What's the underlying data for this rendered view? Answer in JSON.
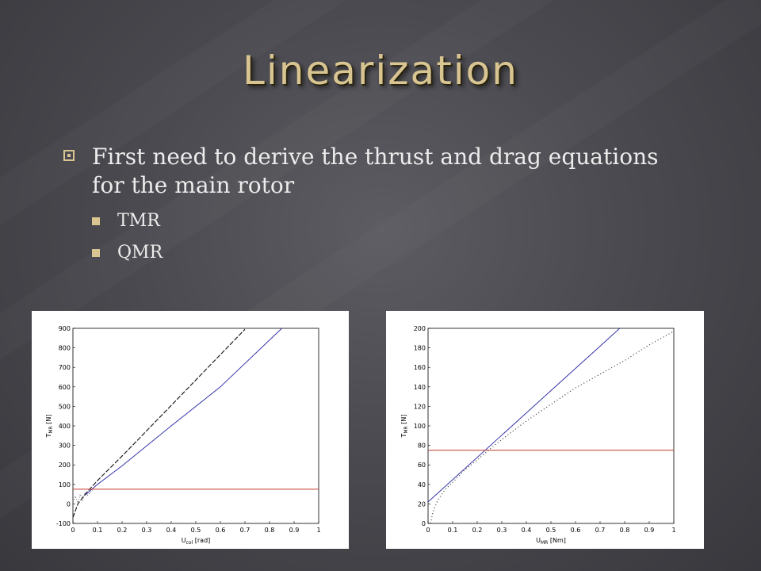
{
  "slide": {
    "title": "Linearization",
    "bullets": [
      {
        "text": "First need to derive the thrust and drag equations for the main rotor",
        "children": [
          "TMR",
          "QMR"
        ]
      }
    ]
  },
  "colors": {
    "title": "#d8c591",
    "linear_fit": "#3333aa",
    "operating_point": "#c0392b",
    "curve": "#222222"
  },
  "chart_data": [
    {
      "type": "line",
      "title": "",
      "xlabel": "U_col [rad]",
      "ylabel": "T_MR [N]",
      "xlim": [
        0,
        1
      ],
      "ylim": [
        -100,
        900
      ],
      "xticks": [
        "0",
        "0.1",
        "0.2",
        "0.3",
        "0.4",
        "0.5",
        "0.6",
        "0.7",
        "0.8",
        "0.9",
        "1"
      ],
      "yticks": [
        "-100",
        "0",
        "100",
        "200",
        "300",
        "400",
        "500",
        "600",
        "700",
        "800",
        "900"
      ],
      "series": [
        {
          "style": "dashed-black",
          "x": [
            0,
            0.02,
            0.05,
            0.1,
            0.2,
            0.3,
            0.4,
            0.5,
            0.6,
            0.7
          ],
          "y": [
            -70,
            0,
            50,
            120,
            245,
            375,
            505,
            635,
            765,
            895
          ]
        },
        {
          "style": "solid-blue",
          "x": [
            0.05,
            0.1,
            0.2,
            0.4,
            0.6,
            0.85
          ],
          "y": [
            45,
            100,
            195,
            400,
            600,
            900
          ]
        },
        {
          "style": "solid-red",
          "x": [
            0,
            1
          ],
          "y": [
            75,
            75
          ]
        },
        {
          "style": "dotted-gray",
          "x": [
            0,
            0.01,
            0.02,
            0.03,
            0.04,
            0.05,
            0.06,
            0.08
          ],
          "y": [
            10,
            40,
            5,
            50,
            20,
            60,
            45,
            70
          ]
        }
      ]
    },
    {
      "type": "line",
      "title": "",
      "xlabel": "U_MR [Nm]",
      "ylabel": "T_MR [N]",
      "xlim": [
        0,
        1
      ],
      "ylim": [
        0,
        200
      ],
      "xticks": [
        "0",
        "0.1",
        "0.2",
        "0.3",
        "0.4",
        "0.5",
        "0.6",
        "0.7",
        "0.8",
        "0.9",
        "1"
      ],
      "yticks": [
        "0",
        "20",
        "40",
        "60",
        "80",
        "100",
        "120",
        "140",
        "160",
        "180",
        "200"
      ],
      "series": [
        {
          "style": "solid-blue",
          "x": [
            0,
            0.78
          ],
          "y": [
            22,
            200
          ]
        },
        {
          "style": "solid-red",
          "x": [
            0,
            1
          ],
          "y": [
            75,
            75
          ]
        },
        {
          "style": "dotted-black",
          "x": [
            0.01,
            0.02,
            0.04,
            0.07,
            0.1,
            0.15,
            0.2,
            0.25,
            0.3,
            0.4,
            0.5,
            0.6,
            0.7,
            0.8,
            0.9,
            1.0
          ],
          "y": [
            0,
            12,
            24,
            35,
            42,
            55,
            65,
            76,
            86,
            105,
            122,
            139,
            153,
            167,
            183,
            197
          ]
        }
      ]
    }
  ]
}
